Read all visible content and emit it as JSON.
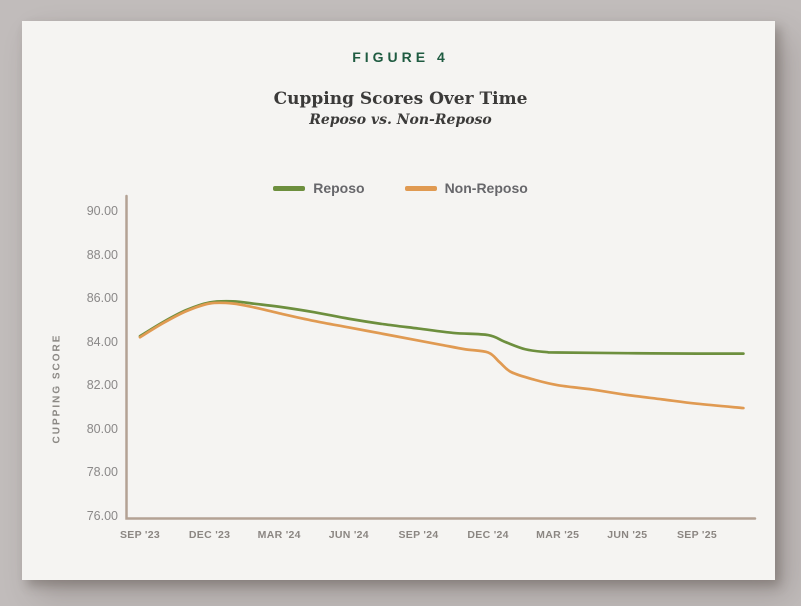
{
  "header": {
    "figure_label": "FIGURE 4",
    "title": "Cupping Scores Over Time",
    "subtitle": "Reposo vs. Non-Reposo"
  },
  "legend": {
    "items": [
      {
        "label": "Reposo",
        "color": "#6d8f3e"
      },
      {
        "label": "Non-Reposo",
        "color": "#e09a52"
      }
    ]
  },
  "colors": {
    "figure_label_green": "#1f5b41",
    "reposo_line": "#6d8f3e",
    "non_reposo_line": "#e09a52",
    "axis_line": "#b3a294",
    "card_background": "#f5f4f2",
    "page_background": "#c1bcbb"
  },
  "chart_data": {
    "type": "line",
    "title": "Cupping Scores Over Time",
    "subtitle": "Reposo vs. Non-Reposo",
    "xlabel": "",
    "ylabel": "CUPPING SCORE",
    "ylim": [
      76,
      90
    ],
    "xlim_months": [
      0,
      26.5
    ],
    "grid": false,
    "legend_position": "top",
    "axis_color": "#b3a294",
    "y_ticks": [
      "90.00",
      "88.00",
      "86.00",
      "84.00",
      "82.00",
      "80.00",
      "78.00",
      "76.00"
    ],
    "categories": [
      "SEP '23",
      "DEC '23",
      "MAR '24",
      "JUN '24",
      "SEP '24",
      "DEC '24",
      "MAR '25",
      "JUN '25",
      "SEP '25"
    ],
    "x_unit": "months_since_sep_2023",
    "tick_x": [
      0,
      3,
      6,
      9,
      12,
      15,
      18,
      21,
      24
    ],
    "quarterly_values": {
      "Reposo": [
        84.3,
        85.85,
        85.65,
        85.1,
        84.65,
        84.35,
        83.55,
        83.5,
        83.5
      ],
      "Non-Reposo": [
        84.25,
        85.8,
        85.35,
        84.7,
        84.1,
        83.55,
        82.05,
        81.6,
        81.2
      ]
    },
    "series": [
      {
        "name": "Reposo",
        "color": "#6d8f3e",
        "points": [
          [
            0,
            84.3
          ],
          [
            1,
            84.95
          ],
          [
            2,
            85.5
          ],
          [
            3,
            85.85
          ],
          [
            4,
            85.9
          ],
          [
            5,
            85.78
          ],
          [
            6,
            85.65
          ],
          [
            7.5,
            85.4
          ],
          [
            9,
            85.1
          ],
          [
            10.5,
            84.85
          ],
          [
            12,
            84.65
          ],
          [
            13.5,
            84.45
          ],
          [
            15,
            84.35
          ],
          [
            15.7,
            84.05
          ],
          [
            16.6,
            83.7
          ],
          [
            17.5,
            83.57
          ],
          [
            18,
            83.55
          ],
          [
            21,
            83.52
          ],
          [
            24,
            83.5
          ],
          [
            26,
            83.5
          ]
        ]
      },
      {
        "name": "Non-Reposo",
        "color": "#e09a52",
        "points": [
          [
            0,
            84.25
          ],
          [
            1,
            84.9
          ],
          [
            2,
            85.45
          ],
          [
            3,
            85.8
          ],
          [
            4,
            85.8
          ],
          [
            5,
            85.6
          ],
          [
            6,
            85.35
          ],
          [
            7.5,
            85.0
          ],
          [
            9,
            84.7
          ],
          [
            10.5,
            84.4
          ],
          [
            12,
            84.1
          ],
          [
            13,
            83.9
          ],
          [
            14,
            83.7
          ],
          [
            15,
            83.55
          ],
          [
            15.5,
            83.1
          ],
          [
            16,
            82.65
          ],
          [
            17,
            82.3
          ],
          [
            18,
            82.05
          ],
          [
            19.5,
            81.85
          ],
          [
            21,
            81.6
          ],
          [
            22.5,
            81.4
          ],
          [
            24,
            81.2
          ],
          [
            26,
            81.0
          ]
        ]
      }
    ]
  }
}
